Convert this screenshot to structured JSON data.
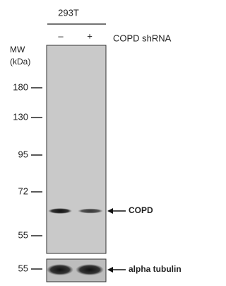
{
  "header": {
    "cell_line": "293T",
    "lanes": [
      "–",
      "+"
    ],
    "treatment": "COPD shRNA"
  },
  "mw": {
    "label_line1": "MW",
    "label_line2": "(kDa)",
    "markers": [
      "180",
      "130",
      "95",
      "72",
      "55"
    ]
  },
  "loading": {
    "marker": "55"
  },
  "targets": [
    "COPD",
    "alpha tubulin"
  ]
}
